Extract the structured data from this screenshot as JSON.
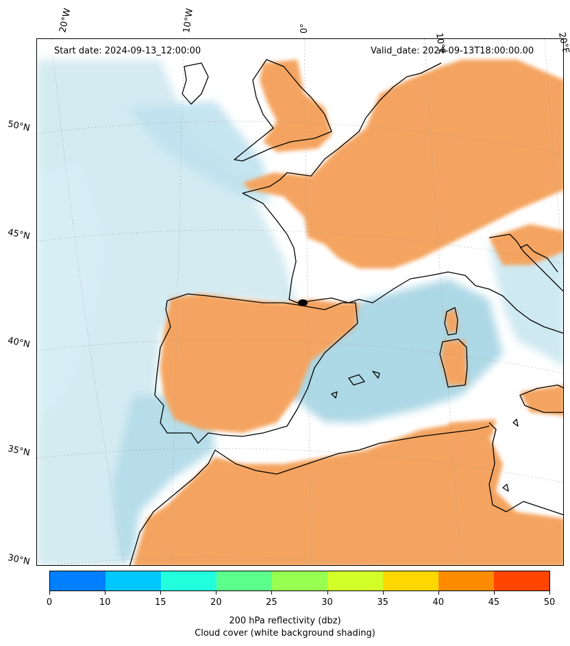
{
  "header": {
    "start_date": "Start date: 2024-09-13_12:00:00",
    "valid_date": "Valid_date: 2024-09-13T18:00:00.00"
  },
  "longitude_labels": [
    "20°W",
    "10°W",
    "0°",
    "10°E",
    "20°E"
  ],
  "latitude_labels": [
    "50°N",
    "45°N",
    "40°N",
    "35°N",
    "30°N"
  ],
  "colorbar": {
    "ticks": [
      "0",
      "10",
      "15",
      "20",
      "25",
      "30",
      "35",
      "40",
      "45",
      "50"
    ],
    "colors": [
      "#0080ff",
      "#00c8ff",
      "#22ffdd",
      "#5cff8c",
      "#96ff50",
      "#d2ff28",
      "#ffd700",
      "#ff8c00",
      "#ff4500"
    ],
    "label_line1": "200 hPa reflectivity (dbz)",
    "label_line2": "Cloud cover (white background shading)"
  },
  "map_colors": {
    "cloud_blue": "#add8e6",
    "dry_orange": "#f4a460",
    "coast": "#000000"
  }
}
